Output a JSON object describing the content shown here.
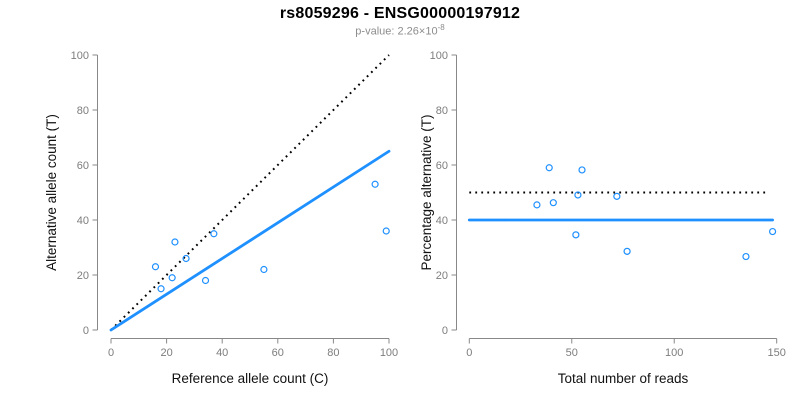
{
  "header": {
    "title": "rs8059296 - ENSG00000197912",
    "subtitle_prefix": "p-value: 2.26×10",
    "subtitle_exponent": "-8"
  },
  "colors": {
    "accent_blue": "#1e90ff",
    "line_black": "#000000",
    "axis_gray": "#888888",
    "tick_label_gray": "#7d7d7d",
    "axis_title_black": "#111111",
    "subtitle_gray": "#8c8c8c"
  },
  "chart_data": [
    {
      "type": "scatter",
      "panel": "left",
      "xlabel": "Reference allele count (C)",
      "ylabel": "Alternative allele count (T)",
      "xlim": [
        0,
        100
      ],
      "ylim": [
        0,
        100
      ],
      "xticks": [
        0,
        20,
        40,
        60,
        80,
        100
      ],
      "yticks": [
        0,
        20,
        40,
        60,
        80,
        100
      ],
      "grid": false,
      "points": [
        [
          16,
          23
        ],
        [
          18,
          15
        ],
        [
          22,
          19
        ],
        [
          23,
          32
        ],
        [
          27,
          26
        ],
        [
          34,
          18
        ],
        [
          37,
          35
        ],
        [
          55,
          22
        ],
        [
          95,
          53
        ],
        [
          99,
          36
        ]
      ],
      "lines": [
        {
          "name": "identity-line",
          "style": "dotted",
          "color": "black",
          "x": [
            0,
            100
          ],
          "y": [
            0,
            100
          ]
        },
        {
          "name": "fit-line",
          "style": "solid",
          "color": "blue",
          "x": [
            0,
            100
          ],
          "y": [
            0,
            65
          ]
        }
      ]
    },
    {
      "type": "scatter",
      "panel": "right",
      "xlabel": "Total number of reads",
      "ylabel": "Percentage alternative (T)",
      "xlim": [
        0,
        150
      ],
      "ylim": [
        0,
        100
      ],
      "xticks": [
        0,
        50,
        100,
        150
      ],
      "yticks": [
        0,
        20,
        40,
        60,
        80,
        100
      ],
      "grid": false,
      "points": [
        [
          33,
          45.5
        ],
        [
          39,
          59
        ],
        [
          41,
          46.3
        ],
        [
          52,
          34.6
        ],
        [
          53,
          49.1
        ],
        [
          55,
          58.2
        ],
        [
          72,
          48.6
        ],
        [
          77,
          28.6
        ],
        [
          135,
          26.7
        ],
        [
          148,
          35.8
        ]
      ],
      "lines": [
        {
          "name": "expected-50pct-line",
          "style": "dotted",
          "color": "black",
          "x": [
            0,
            146
          ],
          "y": [
            50,
            50
          ]
        },
        {
          "name": "mean-40pct-line",
          "style": "solid",
          "color": "blue",
          "x": [
            0,
            148
          ],
          "y": [
            40,
            40
          ]
        }
      ]
    }
  ]
}
